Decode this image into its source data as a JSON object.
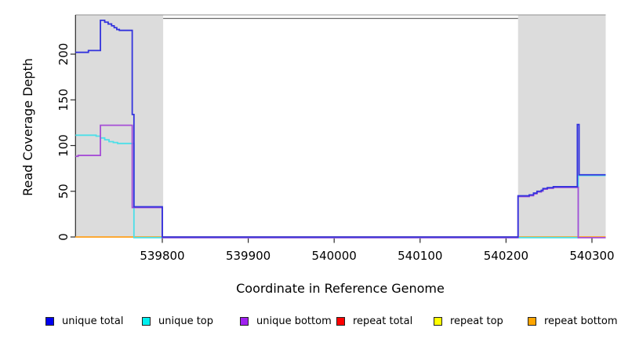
{
  "chart_data": {
    "type": "line",
    "title": "",
    "xlabel": "Coordinate in Reference Genome",
    "ylabel": "Read Coverage Depth",
    "xlim": [
      539699,
      540316
    ],
    "ylim": [
      0,
      243
    ],
    "x_ticks": [
      539800,
      539900,
      540000,
      540100,
      540200,
      540300
    ],
    "y_ticks": [
      0,
      50,
      100,
      150,
      200
    ],
    "grid": "off",
    "legend_position": "bottom",
    "shaded_regions": [
      {
        "name": "left-gray-region",
        "x0": 539699,
        "x1": 539801,
        "color": "#DCDCDC"
      },
      {
        "name": "right-gray-region",
        "x0": 540214,
        "x1": 540316,
        "color": "#DCDCDC"
      }
    ],
    "series": [
      {
        "name": "unique total",
        "key": "unique_total",
        "color": "#0000F0",
        "line_color": "#3333DD",
        "points": [
          [
            539699,
            202
          ],
          [
            539714,
            204
          ],
          [
            539728,
            237
          ],
          [
            539733,
            235
          ],
          [
            539737,
            233
          ],
          [
            539741,
            231
          ],
          [
            539744,
            229
          ],
          [
            539747,
            227
          ],
          [
            539750,
            226
          ],
          [
            539765,
            134
          ],
          [
            539767,
            33
          ],
          [
            539800,
            0
          ],
          [
            540214,
            45
          ],
          [
            540227,
            46
          ],
          [
            540232,
            48
          ],
          [
            540236,
            50
          ],
          [
            540241,
            51
          ],
          [
            540243,
            53
          ],
          [
            540248,
            54
          ],
          [
            540255,
            55
          ],
          [
            540283,
            123
          ],
          [
            540285,
            68
          ]
        ],
        "x_end": 540316
      },
      {
        "name": "unique top",
        "key": "unique_top",
        "color": "#00F0F0",
        "line_color": "#4DDFE8",
        "points": [
          [
            539699,
            112
          ],
          [
            539723,
            111
          ],
          [
            539728,
            109
          ],
          [
            539733,
            107
          ],
          [
            539738,
            105
          ],
          [
            539743,
            104
          ],
          [
            539748,
            103
          ],
          [
            539767,
            0
          ],
          [
            540284,
            68
          ]
        ],
        "x_end": 540316
      },
      {
        "name": "unique bottom",
        "key": "unique_bottom",
        "color": "#A020F0",
        "line_color": "#A64FD6",
        "points": [
          [
            539699,
            89
          ],
          [
            539702,
            90
          ],
          [
            539728,
            123
          ],
          [
            539765,
            33
          ],
          [
            539800,
            0
          ],
          [
            540214,
            45
          ],
          [
            540227,
            46
          ],
          [
            540232,
            48
          ],
          [
            540236,
            50
          ],
          [
            540241,
            51
          ],
          [
            540243,
            53
          ],
          [
            540248,
            54
          ],
          [
            540255,
            55
          ],
          [
            540284,
            0
          ]
        ],
        "x_end": 540316
      },
      {
        "name": "repeat total",
        "key": "repeat_total",
        "color": "#FF0000",
        "line_color": "#E04468",
        "points": [
          [
            539699,
            0
          ]
        ],
        "x_end": 540316
      },
      {
        "name": "repeat top",
        "key": "repeat_top",
        "color": "#FFFF00",
        "line_color": "#FFFF00",
        "points": [
          [
            539699,
            0
          ]
        ],
        "x_end": 540316
      },
      {
        "name": "repeat bottom",
        "key": "repeat_bottom",
        "color": "#FFA500",
        "line_color": "#FF9E2C",
        "points": [
          [
            539699,
            0
          ]
        ],
        "x_end": 540316
      }
    ],
    "draw_order": [
      "repeat_total",
      "repeat_top",
      "repeat_bottom",
      "unique_top",
      "unique_bottom",
      "unique_total"
    ]
  }
}
